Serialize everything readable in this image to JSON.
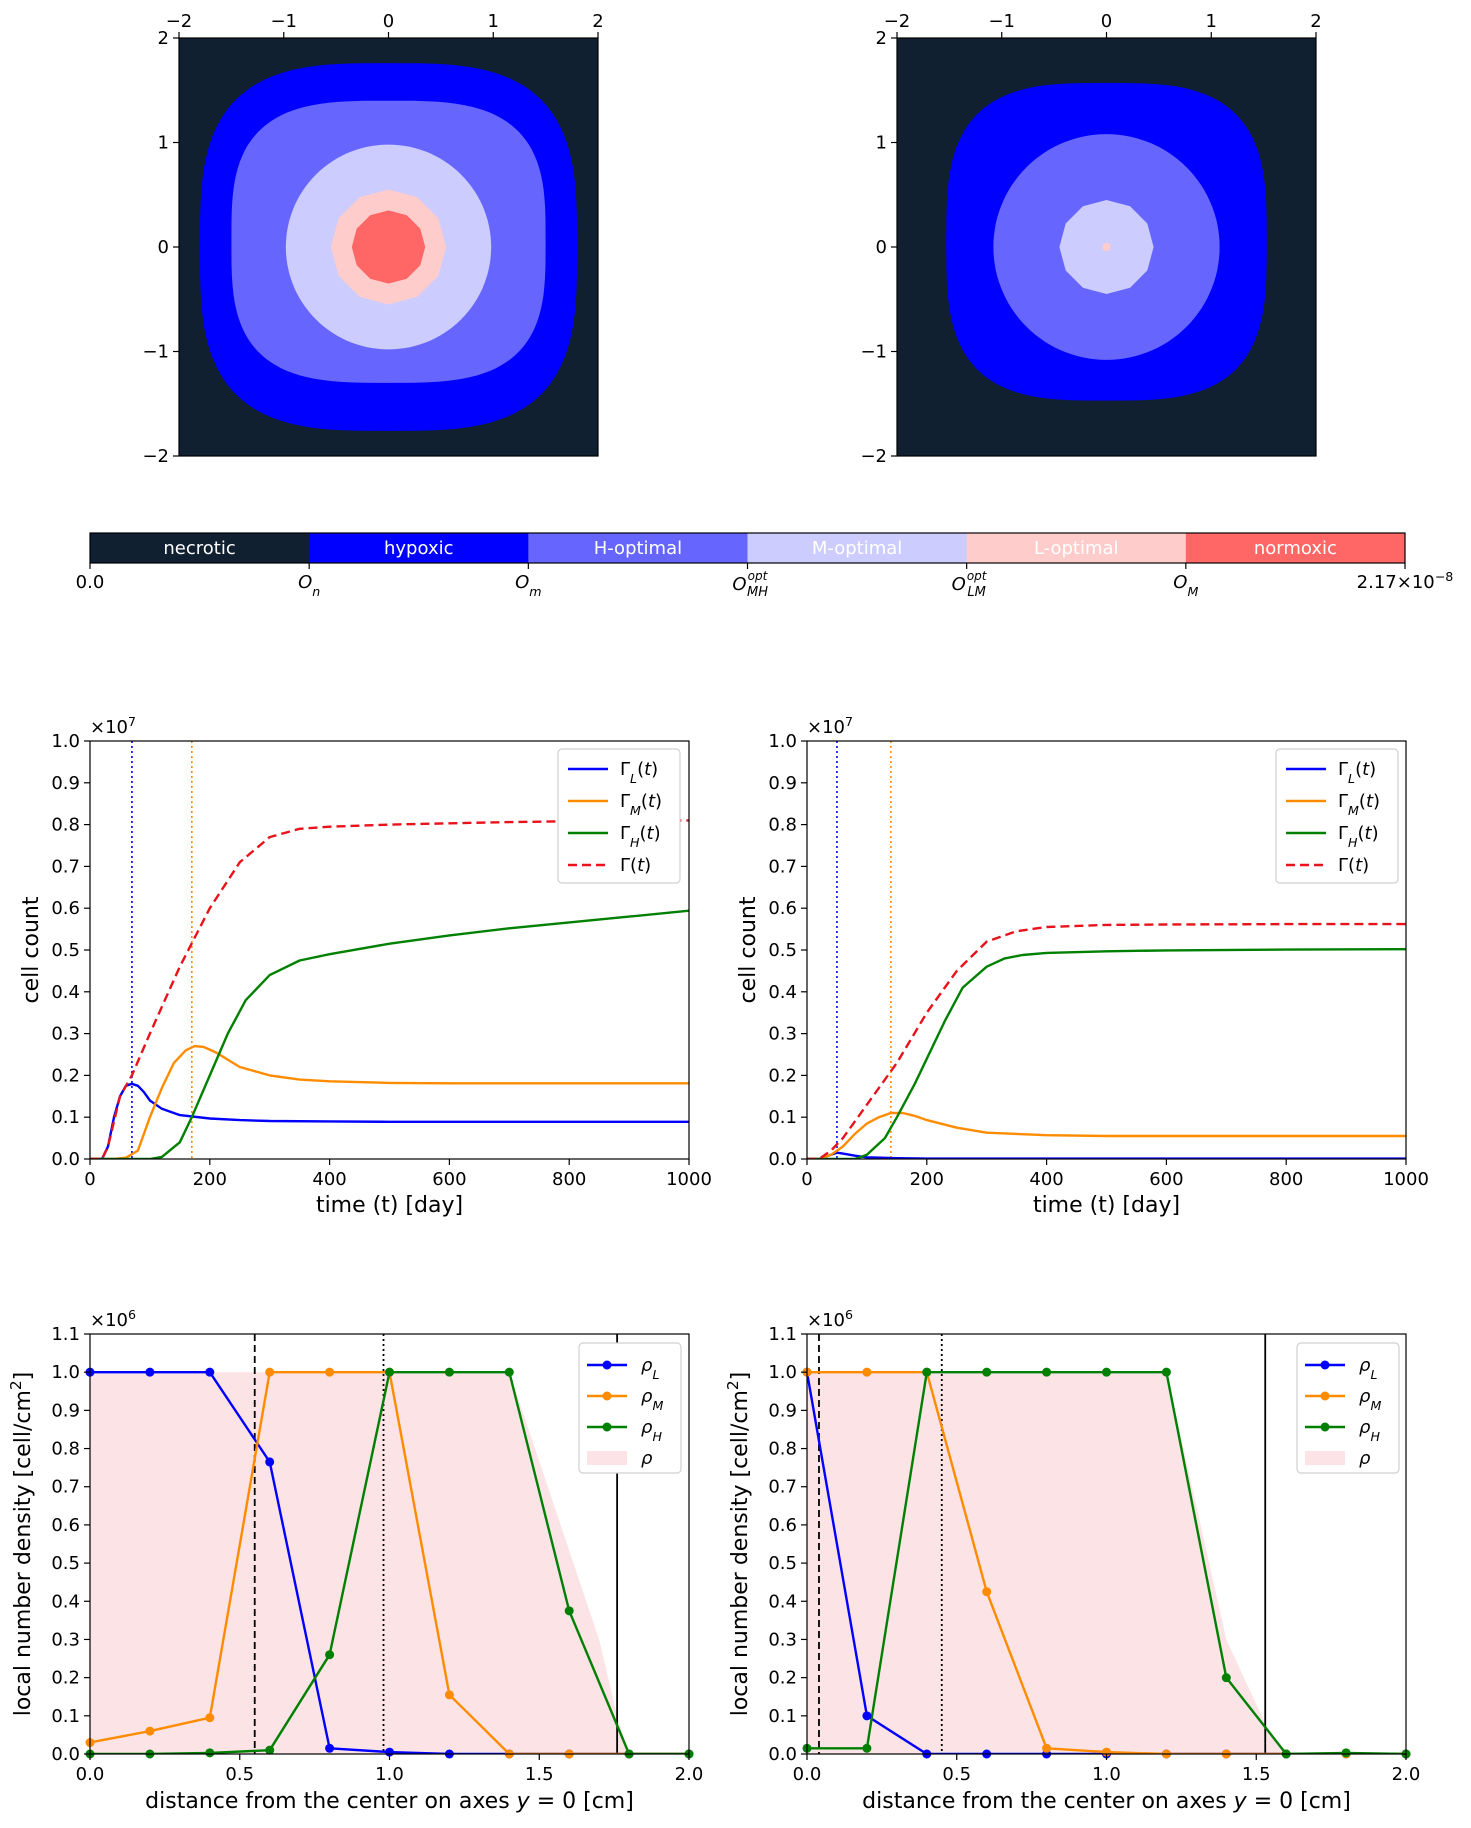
{
  "colors": {
    "necrotic": "#102030",
    "hypoxic": "#0000ff",
    "h_optimal": "#6666ff",
    "m_optimal": "#ccccff",
    "l_optimal": "#ffcccc",
    "normoxic": "#ff6666",
    "gamma_L": "#0000ff",
    "gamma_M": "#ff8c00",
    "gamma_H": "#008000",
    "gamma_total": "#e8121a",
    "rho_fill": "#fbe3e6"
  },
  "chart_data": [
    {
      "id": "map-left",
      "type": "heatmap",
      "title": "",
      "xlim": [
        -2,
        2
      ],
      "ylim": [
        -2,
        2
      ],
      "x_ticks": [
        "−2",
        "−1",
        "0",
        "1",
        "2"
      ],
      "y_ticks": [
        "2",
        "1",
        "0",
        "−1",
        "−2"
      ],
      "regions": [
        {
          "zone": "hypoxic",
          "radius_x": 1.8,
          "radius_y": 1.76,
          "center_y": 0.0,
          "shape": "rounded-square"
        },
        {
          "zone": "h_optimal",
          "radius_x": 1.5,
          "radius_y": 1.35,
          "center_y": 0.05,
          "shape": "rounded-square"
        },
        {
          "zone": "m_optimal",
          "radius_x": 0.98,
          "radius_y": 0.98,
          "center_y": 0.0,
          "shape": "circle"
        },
        {
          "zone": "l_optimal",
          "radius_x": 0.55,
          "radius_y": 0.55,
          "center_y": 0.0,
          "shape": "polygon"
        },
        {
          "zone": "normoxic",
          "radius_x": 0.35,
          "radius_y": 0.35,
          "center_y": 0.0,
          "shape": "polygon"
        }
      ]
    },
    {
      "id": "map-right",
      "type": "heatmap",
      "title": "",
      "xlim": [
        -2,
        2
      ],
      "ylim": [
        -2,
        2
      ],
      "x_ticks": [
        "−2",
        "−1",
        "0",
        "1",
        "2"
      ],
      "y_ticks": [
        "2",
        "1",
        "0",
        "−1",
        "−2"
      ],
      "regions": [
        {
          "zone": "hypoxic",
          "radius_x": 1.53,
          "radius_y": 1.52,
          "center_y": 0.05,
          "shape": "rounded-square"
        },
        {
          "zone": "h_optimal",
          "radius_x": 1.08,
          "radius_y": 1.08,
          "center_y": 0.0,
          "shape": "circle"
        },
        {
          "zone": "m_optimal",
          "radius_x": 0.45,
          "radius_y": 0.45,
          "center_y": 0.0,
          "shape": "polygon"
        },
        {
          "zone": "l_optimal",
          "radius_x": 0.04,
          "radius_y": 0.04,
          "center_y": 0.0,
          "shape": "polygon"
        }
      ]
    },
    {
      "id": "colorbar",
      "type": "legend-bar",
      "segments": [
        {
          "zone": "necrotic",
          "label": "necrotic"
        },
        {
          "zone": "hypoxic",
          "label": "hypoxic"
        },
        {
          "zone": "h_optimal",
          "label": "H-optimal"
        },
        {
          "zone": "m_optimal",
          "label": "M-optimal"
        },
        {
          "zone": "l_optimal",
          "label": "L-optimal"
        },
        {
          "zone": "normoxic",
          "label": "normoxic"
        }
      ],
      "tick_labels": [
        "0.0",
        "O_n",
        "O_m",
        "O^opt_MH",
        "O^opt_LM",
        "O_M",
        "2.17×10−8"
      ],
      "max_value": "2.17×10−8"
    },
    {
      "id": "counts-left",
      "type": "line",
      "xlabel": "time (t) [day]",
      "ylabel": "cell count",
      "scale_label": "×10",
      "scale_exp": "7",
      "xlim": [
        0,
        1000
      ],
      "ylim": [
        0,
        1.0
      ],
      "x_ticks": [
        0,
        200,
        400,
        600,
        800,
        1000
      ],
      "y_ticks": [
        "0.0",
        "0.1",
        "0.2",
        "0.3",
        "0.4",
        "0.5",
        "0.6",
        "0.7",
        "0.8",
        "0.9",
        "1.0"
      ],
      "vlines": [
        {
          "x": 70,
          "color": "gamma_L"
        },
        {
          "x": 170,
          "color": "gamma_M"
        }
      ],
      "legend": [
        "Γ_L(t)",
        "Γ_M(t)",
        "Γ_H(t)",
        "Γ(t)"
      ],
      "series": [
        {
          "name": "Γ_L(t)",
          "color": "gamma_L",
          "dash": false,
          "x": [
            0,
            20,
            30,
            40,
            50,
            60,
            70,
            80,
            90,
            100,
            120,
            150,
            200,
            250,
            300,
            400,
            500,
            600,
            800,
            1000
          ],
          "y": [
            0,
            0.0,
            0.03,
            0.1,
            0.15,
            0.175,
            0.18,
            0.175,
            0.16,
            0.14,
            0.12,
            0.105,
            0.097,
            0.093,
            0.091,
            0.09,
            0.089,
            0.089,
            0.089,
            0.089
          ]
        },
        {
          "name": "Γ_M(t)",
          "color": "gamma_M",
          "dash": false,
          "x": [
            0,
            40,
            60,
            80,
            100,
            120,
            140,
            160,
            175,
            190,
            210,
            250,
            300,
            350,
            400,
            500,
            600,
            800,
            1000
          ],
          "y": [
            0,
            0,
            0.003,
            0.02,
            0.1,
            0.17,
            0.23,
            0.26,
            0.27,
            0.268,
            0.255,
            0.22,
            0.2,
            0.19,
            0.186,
            0.182,
            0.181,
            0.181,
            0.181
          ]
        },
        {
          "name": "Γ_H(t)",
          "color": "gamma_H",
          "dash": false,
          "x": [
            0,
            100,
            120,
            150,
            170,
            200,
            230,
            260,
            300,
            350,
            400,
            500,
            600,
            700,
            800,
            900,
            1000
          ],
          "y": [
            0,
            0,
            0.005,
            0.04,
            0.1,
            0.2,
            0.3,
            0.38,
            0.44,
            0.475,
            0.49,
            0.515,
            0.535,
            0.552,
            0.566,
            0.58,
            0.594
          ]
        },
        {
          "name": "Γ(t)",
          "color": "gamma_total",
          "dash": true,
          "x": [
            0,
            20,
            30,
            50,
            70,
            100,
            150,
            200,
            250,
            300,
            350,
            400,
            500,
            600,
            700,
            800,
            1000
          ],
          "y": [
            0,
            0,
            0.03,
            0.15,
            0.2,
            0.3,
            0.46,
            0.6,
            0.71,
            0.77,
            0.79,
            0.795,
            0.8,
            0.803,
            0.806,
            0.808,
            0.81
          ]
        }
      ]
    },
    {
      "id": "counts-right",
      "type": "line",
      "xlabel": "time (t) [day]",
      "ylabel": "cell count",
      "scale_label": "×10",
      "scale_exp": "7",
      "xlim": [
        0,
        1000
      ],
      "ylim": [
        0,
        1.0
      ],
      "x_ticks": [
        0,
        200,
        400,
        600,
        800,
        1000
      ],
      "y_ticks": [
        "0.0",
        "0.1",
        "0.2",
        "0.3",
        "0.4",
        "0.5",
        "0.6",
        "0.7",
        "0.8",
        "0.9",
        "1.0"
      ],
      "vlines": [
        {
          "x": 50,
          "color": "gamma_L"
        },
        {
          "x": 140,
          "color": "gamma_M"
        }
      ],
      "legend": [
        "Γ_L(t)",
        "Γ_M(t)",
        "Γ_H(t)",
        "Γ(t)"
      ],
      "series": [
        {
          "name": "Γ_L(t)",
          "color": "gamma_L",
          "dash": false,
          "x": [
            0,
            20,
            40,
            50,
            60,
            80,
            100,
            150,
            200,
            400,
            1000
          ],
          "y": [
            0,
            0,
            0.01,
            0.015,
            0.013,
            0.008,
            0.004,
            0.002,
            0.001,
            0.001,
            0.001
          ]
        },
        {
          "name": "Γ_M(t)",
          "color": "gamma_M",
          "dash": false,
          "x": [
            0,
            20,
            40,
            60,
            80,
            100,
            120,
            140,
            160,
            180,
            200,
            250,
            300,
            400,
            500,
            600,
            800,
            1000
          ],
          "y": [
            0,
            0,
            0.01,
            0.03,
            0.06,
            0.085,
            0.1,
            0.11,
            0.11,
            0.103,
            0.093,
            0.075,
            0.063,
            0.057,
            0.055,
            0.055,
            0.055,
            0.055
          ]
        },
        {
          "name": "Γ_H(t)",
          "color": "gamma_H",
          "dash": false,
          "x": [
            0,
            80,
            100,
            130,
            150,
            180,
            200,
            230,
            260,
            300,
            330,
            360,
            400,
            500,
            600,
            800,
            1000
          ],
          "y": [
            0,
            0,
            0.01,
            0.05,
            0.1,
            0.18,
            0.24,
            0.33,
            0.41,
            0.46,
            0.48,
            0.488,
            0.493,
            0.497,
            0.499,
            0.501,
            0.502
          ]
        },
        {
          "name": "Γ(t)",
          "color": "gamma_total",
          "dash": true,
          "x": [
            0,
            20,
            40,
            60,
            80,
            100,
            150,
            200,
            250,
            300,
            350,
            400,
            500,
            600,
            800,
            1000
          ],
          "y": [
            0,
            0,
            0.02,
            0.05,
            0.09,
            0.13,
            0.23,
            0.35,
            0.45,
            0.52,
            0.545,
            0.555,
            0.56,
            0.561,
            0.562,
            0.562
          ]
        }
      ]
    },
    {
      "id": "density-left",
      "type": "line",
      "xlabel": "distance from the center on axes y = 0 [cm]",
      "ylabel": "local number density [cell/cm²]",
      "scale_label": "×10",
      "scale_exp": "6",
      "xlim": [
        0,
        2.0
      ],
      "ylim": [
        0,
        1.1
      ],
      "x_ticks": [
        "0.0",
        "0.5",
        "1.0",
        "1.5",
        "2.0"
      ],
      "x_tick_values": [
        0,
        0.5,
        1.0,
        1.5,
        2.0
      ],
      "y_ticks": [
        "0.0",
        "0.1",
        "0.2",
        "0.3",
        "0.4",
        "0.5",
        "0.6",
        "0.7",
        "0.8",
        "0.9",
        "1.0",
        "1.1"
      ],
      "vlines": [
        {
          "x": 0.55,
          "style": "dashed"
        },
        {
          "x": 0.98,
          "style": "dotted"
        },
        {
          "x": 1.76,
          "style": "solid"
        }
      ],
      "legend": [
        "ρ_L",
        "ρ_M",
        "ρ_H",
        "ρ"
      ],
      "rho_area": {
        "x": [
          0,
          0.4,
          0.55,
          1.0,
          1.4,
          1.7,
          1.76,
          1.8
        ],
        "y": [
          1,
          1,
          1,
          1,
          1,
          0.3,
          0.1,
          0
        ]
      },
      "series": [
        {
          "name": "ρ_L",
          "color": "gamma_L",
          "x": [
            0,
            0.2,
            0.4,
            0.6,
            0.8,
            1.0,
            1.2,
            1.4,
            1.6,
            1.8,
            2.0
          ],
          "y": [
            1.0,
            1.0,
            1.0,
            0.765,
            0.015,
            0.005,
            0,
            0,
            0,
            0,
            0
          ]
        },
        {
          "name": "ρ_M",
          "color": "gamma_M",
          "x": [
            0,
            0.2,
            0.4,
            0.6,
            0.8,
            1.0,
            1.2,
            1.4,
            1.6,
            1.8,
            2.0
          ],
          "y": [
            0.03,
            0.06,
            0.095,
            1.0,
            1.0,
            1.0,
            0.155,
            0,
            0,
            0,
            0
          ]
        },
        {
          "name": "ρ_H",
          "color": "gamma_H",
          "x": [
            0,
            0.2,
            0.4,
            0.6,
            0.8,
            1.0,
            1.2,
            1.4,
            1.6,
            1.8,
            2.0
          ],
          "y": [
            0,
            0,
            0.003,
            0.01,
            0.26,
            1.0,
            1.0,
            1.0,
            0.375,
            0,
            0
          ]
        }
      ]
    },
    {
      "id": "density-right",
      "type": "line",
      "xlabel": "distance from the center on axes y = 0 [cm]",
      "ylabel": "local number density [cell/cm²]",
      "scale_label": "×10",
      "scale_exp": "6",
      "xlim": [
        0,
        2.0
      ],
      "ylim": [
        0,
        1.1
      ],
      "x_ticks": [
        "0.0",
        "0.5",
        "1.0",
        "1.5",
        "2.0"
      ],
      "x_tick_values": [
        0,
        0.5,
        1.0,
        1.5,
        2.0
      ],
      "y_ticks": [
        "0.0",
        "0.1",
        "0.2",
        "0.3",
        "0.4",
        "0.5",
        "0.6",
        "0.7",
        "0.8",
        "0.9",
        "1.0",
        "1.1"
      ],
      "vlines": [
        {
          "x": 0.04,
          "style": "dashed"
        },
        {
          "x": 0.45,
          "style": "dotted"
        },
        {
          "x": 1.53,
          "style": "solid"
        }
      ],
      "legend": [
        "ρ_L",
        "ρ_M",
        "ρ_H",
        "ρ"
      ],
      "rho_area": {
        "x": [
          0,
          0.6,
          1.2,
          1.4,
          1.53,
          1.6
        ],
        "y": [
          1,
          1,
          1,
          0.3,
          0.08,
          0
        ]
      },
      "series": [
        {
          "name": "ρ_L",
          "color": "gamma_L",
          "x": [
            0,
            0.2,
            0.4,
            0.6,
            0.8,
            1.0,
            1.2,
            1.4,
            1.6,
            1.8,
            2.0
          ],
          "y": [
            1.0,
            0.1,
            0,
            0,
            0,
            0,
            0,
            0,
            0,
            0,
            0
          ]
        },
        {
          "name": "ρ_M",
          "color": "gamma_M",
          "x": [
            0,
            0.2,
            0.4,
            0.6,
            0.8,
            1.0,
            1.2,
            1.4,
            1.6,
            1.8,
            2.0
          ],
          "y": [
            1.0,
            1.0,
            1.0,
            0.425,
            0.015,
            0.005,
            0,
            0,
            0,
            0,
            0
          ]
        },
        {
          "name": "ρ_H",
          "color": "gamma_H",
          "x": [
            0,
            0.2,
            0.4,
            0.6,
            0.8,
            1.0,
            1.2,
            1.4,
            1.6,
            1.8,
            2.0
          ],
          "y": [
            0.015,
            0.015,
            1.0,
            1.0,
            1.0,
            1.0,
            1.0,
            0.2,
            0,
            0.003,
            0
          ]
        }
      ]
    }
  ]
}
